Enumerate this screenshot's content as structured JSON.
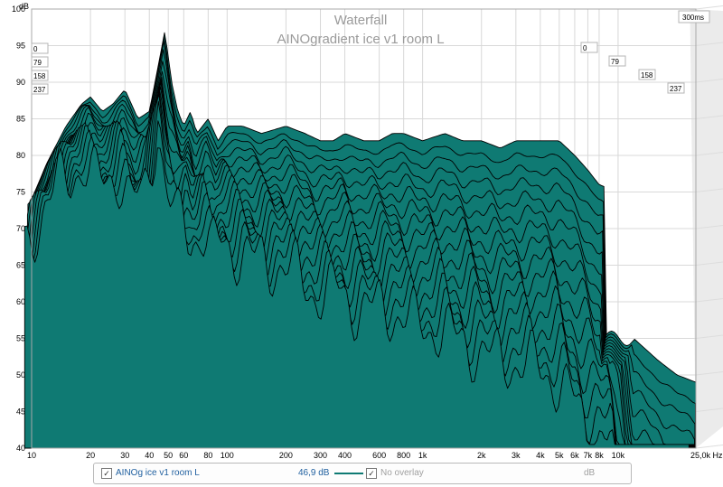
{
  "chart_data": {
    "type": "area",
    "title": "Waterfall",
    "subtitle": "AINOgradient ice v1 room L",
    "ylabel": "dB",
    "xlabel": "",
    "x_unit": "Hz",
    "time_label": "300ms",
    "x_scale": "log",
    "xlim": [
      10,
      25000
    ],
    "ylim": [
      40,
      100
    ],
    "x_ticks": [
      {
        "v": 10,
        "l": "10"
      },
      {
        "v": 20,
        "l": "20"
      },
      {
        "v": 30,
        "l": "30"
      },
      {
        "v": 40,
        "l": "40"
      },
      {
        "v": 50,
        "l": "50"
      },
      {
        "v": 60,
        "l": "60"
      },
      {
        "v": 80,
        "l": "80"
      },
      {
        "v": 100,
        "l": "100"
      },
      {
        "v": 200,
        "l": "200"
      },
      {
        "v": 300,
        "l": "300"
      },
      {
        "v": 400,
        "l": "400"
      },
      {
        "v": 600,
        "l": "600"
      },
      {
        "v": 800,
        "l": "800"
      },
      {
        "v": 1000,
        "l": "1k"
      },
      {
        "v": 2000,
        "l": "2k"
      },
      {
        "v": 3000,
        "l": "3k"
      },
      {
        "v": 4000,
        "l": "4k"
      },
      {
        "v": 5000,
        "l": "5k"
      },
      {
        "v": 6000,
        "l": "6k"
      },
      {
        "v": 7000,
        "l": "7k"
      },
      {
        "v": 8000,
        "l": "8k"
      },
      {
        "v": 10000,
        "l": "10k"
      },
      {
        "v": 25000,
        "l": "25,0k Hz"
      }
    ],
    "y_ticks": [
      100,
      95,
      90,
      85,
      80,
      75,
      70,
      65,
      60,
      55,
      50,
      45,
      40
    ],
    "time_slices_ms_front": [
      "0",
      "79",
      "158",
      "237"
    ],
    "time_slices_ms_back": [
      "0",
      "79",
      "158",
      "237"
    ],
    "first_slice": {
      "freq": [
        10,
        12,
        15,
        18,
        20,
        23,
        26,
        30,
        35,
        40,
        45,
        48,
        52,
        56,
        60,
        65,
        70,
        80,
        90,
        100,
        120,
        150,
        200,
        250,
        300,
        350,
        400,
        500,
        600,
        700,
        800,
        1000,
        1300,
        1600,
        2000,
        2500,
        3000,
        4000,
        5000,
        6000,
        7000,
        8000,
        10000,
        12000,
        16000,
        20000,
        25000
      ],
      "level_db": [
        74,
        79,
        84,
        87,
        88,
        86,
        87,
        89,
        85,
        86,
        93,
        97,
        90,
        86,
        84,
        86,
        83,
        85,
        82,
        84,
        84,
        83,
        84,
        83,
        82,
        82,
        83,
        82,
        82,
        83,
        83,
        82,
        83,
        82,
        82,
        81,
        82,
        82,
        82,
        80,
        78,
        76,
        75,
        55,
        52,
        50,
        49
      ]
    },
    "slice_count": 16,
    "legend": {
      "series_checkbox": "✓",
      "series_name": "AINOg ice v1 room L",
      "series_value": "46,9 dB",
      "overlay_checkbox": "✓",
      "overlay_label": "No overlay",
      "overlay_unit": "dB"
    },
    "colors": {
      "fill": "#0f7a73",
      "line": "#000000",
      "grid": "#d8d8d8",
      "back_wall": "#f0f0f0",
      "side_wall": "#ebebeb"
    }
  }
}
